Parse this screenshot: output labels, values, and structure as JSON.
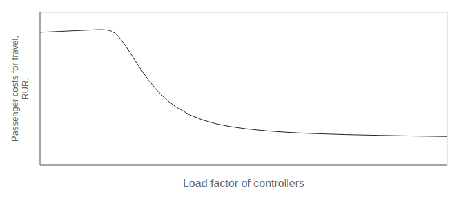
{
  "chart_data": {
    "type": "line",
    "xlabel": "Load factor of controllers",
    "ylabel": "Passenger costs for travel,\nRUR.",
    "color": "#222222",
    "x": [
      0.0,
      0.05,
      0.1,
      0.2,
      0.3,
      0.4,
      0.5,
      0.6,
      0.7,
      0.75,
      0.8,
      0.85,
      0.9,
      0.95,
      1.0,
      1.05,
      1.1,
      1.15,
      1.2,
      1.3,
      1.4,
      1.5,
      1.6,
      1.7,
      1.8,
      1.9,
      2.0,
      2.2,
      2.4,
      2.6,
      2.8,
      3.0,
      3.2,
      3.4,
      3.6,
      3.8,
      4.0,
      4.5,
      5.0,
      5.5,
      6.0
    ],
    "values": [
      0.87,
      0.871,
      0.872,
      0.874,
      0.876,
      0.878,
      0.88,
      0.882,
      0.884,
      0.885,
      0.886,
      0.887,
      0.887,
      0.886,
      0.884,
      0.878,
      0.865,
      0.845,
      0.818,
      0.755,
      0.685,
      0.618,
      0.556,
      0.502,
      0.455,
      0.415,
      0.382,
      0.33,
      0.295,
      0.27,
      0.253,
      0.24,
      0.23,
      0.222,
      0.216,
      0.211,
      0.207,
      0.2,
      0.195,
      0.191,
      0.188
    ],
    "xlim": [
      0,
      6
    ],
    "ylim": [
      0,
      1
    ],
    "xticks": [
      0,
      0.25,
      0.5,
      0.75,
      1,
      1.25,
      1.5,
      1.75,
      2,
      2.25,
      2.5,
      2.75,
      3,
      3.25,
      3.5,
      3.75,
      4,
      4.25,
      4.5,
      4.75,
      5,
      5.25,
      5.5,
      5.75,
      6
    ],
    "yticks": [
      0,
      0.05,
      0.1,
      0.15,
      0.2,
      0.25,
      0.3,
      0.35,
      0.4,
      0.45,
      0.5,
      0.55,
      0.6,
      0.65,
      0.7,
      0.75,
      0.8,
      0.85,
      0.9,
      0.95,
      1
    ],
    "grid": true,
    "tick_labels": false
  }
}
